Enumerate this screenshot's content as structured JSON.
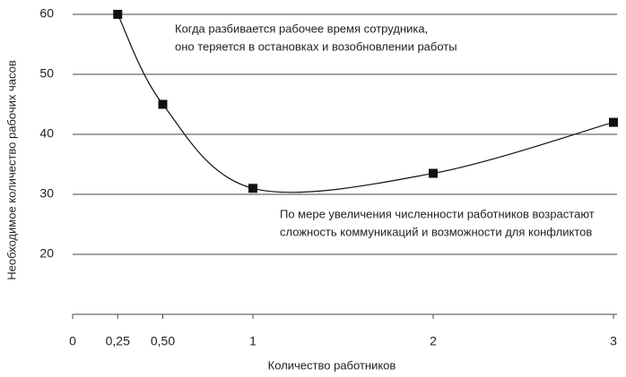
{
  "chart_data": {
    "type": "line",
    "x_label": "Количество работников",
    "y_label": "Необходимое количество рабочих часов",
    "x": [
      0.25,
      0.5,
      1,
      2,
      3
    ],
    "series": [
      {
        "color": "#111111",
        "values": [
          60,
          45,
          31,
          33.5,
          42
        ]
      }
    ],
    "xlim": [
      0,
      3
    ],
    "xticks": [
      0,
      {
        "value": 0.25,
        "label": "0,25"
      },
      {
        "value": 0.5,
        "label": "0,50"
      },
      1,
      2,
      3
    ],
    "ylim": [
      10,
      60
    ],
    "yticks": [
      20,
      30,
      40,
      50,
      60
    ],
    "grid": true,
    "annotations": [
      [
        "Когда разбивается рабочее время сотрудника,",
        "оно теряется в остановках и возобновлении работы"
      ],
      [
        "По мере увеличения численности работников возрастают",
        "сложность коммуникаций и возможности для конфликтов"
      ]
    ]
  }
}
